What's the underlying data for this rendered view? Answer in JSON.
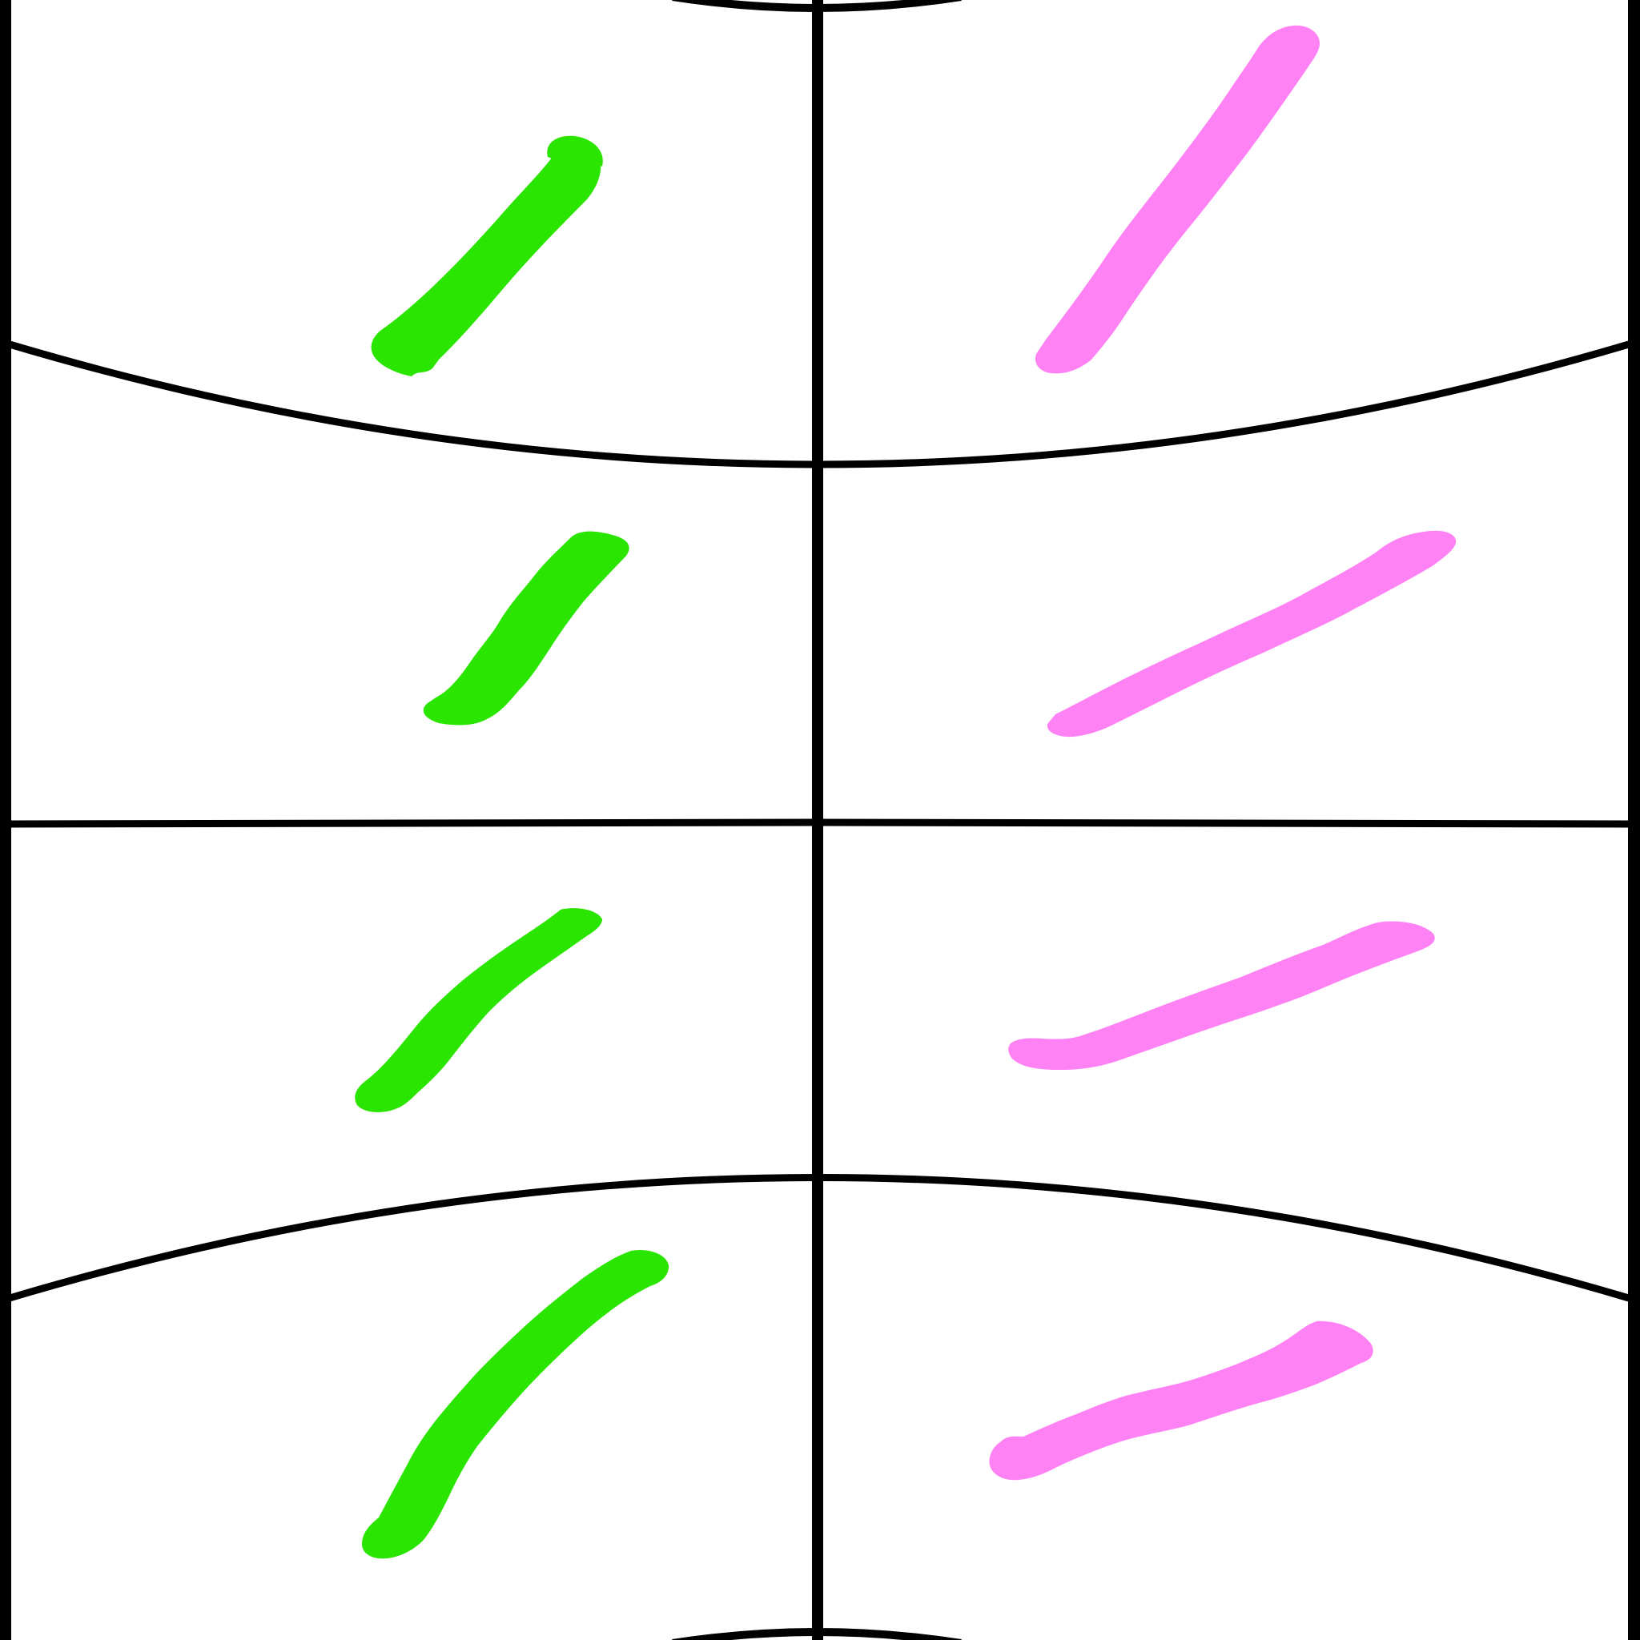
{
  "diagram": {
    "background_color": "#ffffff",
    "line_color": "#000000",
    "stroke_colors": {
      "green": "#2ae500",
      "pink": "#ff82f5"
    },
    "columns": 2,
    "rows": 4,
    "strokes": [
      {
        "column": "left",
        "row": 1,
        "color": "green"
      },
      {
        "column": "right",
        "row": 1,
        "color": "pink"
      },
      {
        "column": "left",
        "row": 2,
        "color": "green"
      },
      {
        "column": "right",
        "row": 2,
        "color": "pink"
      },
      {
        "column": "left",
        "row": 3,
        "color": "green"
      },
      {
        "column": "right",
        "row": 3,
        "color": "pink"
      },
      {
        "column": "left",
        "row": 4,
        "color": "green"
      },
      {
        "column": "right",
        "row": 4,
        "color": "pink"
      }
    ]
  }
}
